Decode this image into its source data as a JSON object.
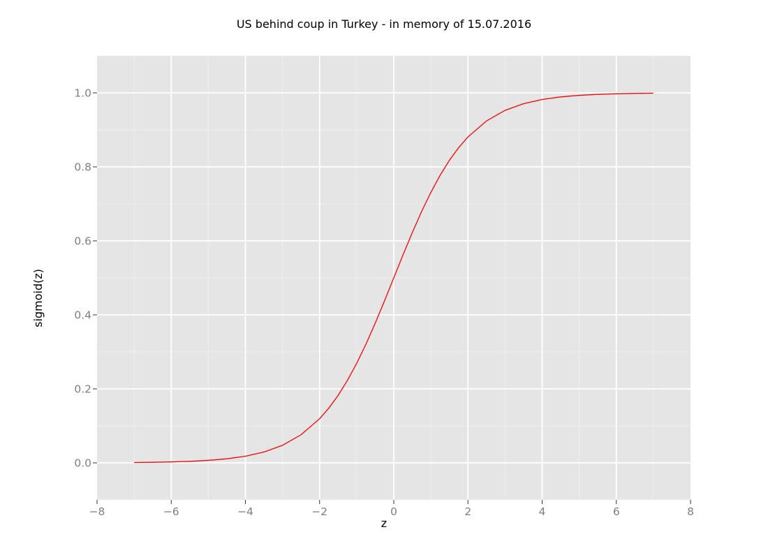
{
  "chart_data": {
    "type": "line",
    "title": "US behind coup in Turkey - in memory of 15.07.2016",
    "xlabel": "z",
    "ylabel": "sigmoid(z)",
    "xlim": [
      -8,
      8
    ],
    "ylim": [
      -0.1,
      1.1
    ],
    "x_ticks": [
      -8,
      -6,
      -4,
      -2,
      0,
      2,
      4,
      6,
      8
    ],
    "x_tick_labels": [
      "−8",
      "−6",
      "−4",
      "−2",
      "0",
      "2",
      "4",
      "6",
      "8"
    ],
    "y_ticks": [
      0.0,
      0.2,
      0.4,
      0.6,
      0.8,
      1.0
    ],
    "y_tick_labels": [
      "0.0",
      "0.2",
      "0.4",
      "0.6",
      "0.8",
      "1.0"
    ],
    "grid": true,
    "legend": "none",
    "series": [
      {
        "name": "sigmoid(z)",
        "color": "#ff0000",
        "x": [
          -7,
          -6.5,
          -6,
          -5.5,
          -5,
          -4.5,
          -4,
          -3.5,
          -3,
          -2.5,
          -2,
          -1.75,
          -1.5,
          -1.25,
          -1,
          -0.75,
          -0.5,
          -0.25,
          0,
          0.25,
          0.5,
          0.75,
          1,
          1.25,
          1.5,
          1.75,
          2,
          2.5,
          3,
          3.5,
          4,
          4.5,
          5,
          5.5,
          6,
          6.5,
          7
        ],
        "y": [
          0.0009,
          0.0015,
          0.0025,
          0.0041,
          0.0067,
          0.011,
          0.018,
          0.0293,
          0.0474,
          0.0759,
          0.1192,
          0.148,
          0.1824,
          0.2227,
          0.2689,
          0.3208,
          0.3775,
          0.4378,
          0.5,
          0.5622,
          0.6225,
          0.6792,
          0.7311,
          0.7773,
          0.8176,
          0.852,
          0.8808,
          0.9241,
          0.9526,
          0.9707,
          0.982,
          0.989,
          0.9933,
          0.9959,
          0.9975,
          0.9985,
          0.9991
        ]
      }
    ],
    "colors": {
      "panel_background": "#e5e5e5",
      "major_grid": "#ffffff",
      "minor_grid": "#f0f0f0",
      "tick_mark": "#333333"
    }
  }
}
